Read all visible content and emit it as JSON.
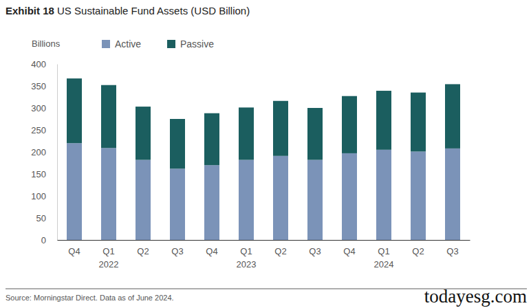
{
  "chart_data": {
    "type": "bar",
    "title": "Exhibit 18 US Sustainable Fund Assets (USD Billion)",
    "y_label": "Billions",
    "categories": [
      "Q4",
      "Q1\n2022",
      "Q2",
      "Q3",
      "Q4",
      "Q1\n2023",
      "Q2",
      "Q3",
      "Q4",
      "Q1\n2024",
      "Q2",
      "Q3"
    ],
    "series": [
      {
        "name": "Active",
        "color": "#7b93b8",
        "values": [
          220,
          209,
          182,
          162,
          170,
          182,
          191,
          182,
          197,
          205,
          201,
          208
        ]
      },
      {
        "name": "Passive",
        "color": "#1b5e5f",
        "values": [
          147,
          143,
          121,
          113,
          118,
          119,
          125,
          118,
          130,
          134,
          134,
          146
        ]
      }
    ],
    "stacked": true,
    "ylim": [
      0,
      400
    ],
    "yticks": [
      0,
      50,
      100,
      150,
      200,
      250,
      300,
      350,
      400
    ],
    "grid": false,
    "legend": "top",
    "annotations": [
      "Source: Morningstar Direct. Data as of June 2024.",
      "todayesg.com"
    ]
  }
}
